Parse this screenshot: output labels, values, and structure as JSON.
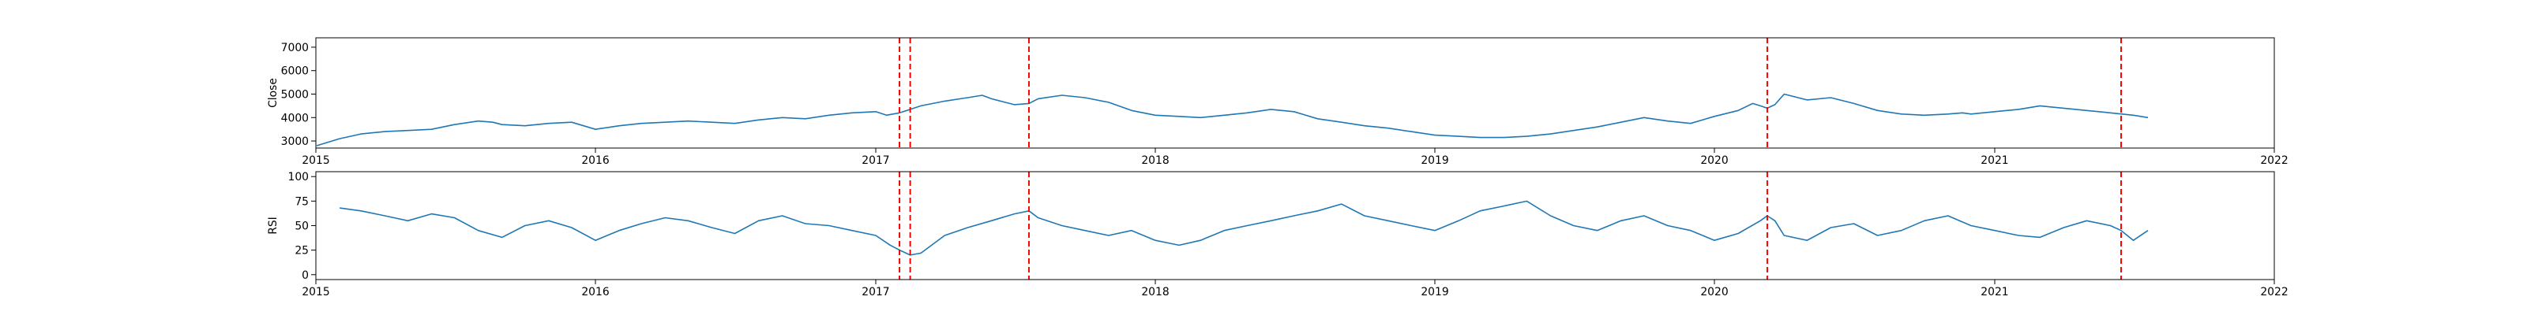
{
  "chart_data": [
    {
      "type": "line",
      "ylabel": "Close",
      "xlim": [
        "2015-01-01",
        "2022-01-01"
      ],
      "ylim": [
        2700,
        7400
      ],
      "xticks": [
        "2015",
        "2016",
        "2017",
        "2018",
        "2019",
        "2020",
        "2021",
        "2022"
      ],
      "yticks": [
        3000,
        4000,
        5000,
        6000,
        7000
      ],
      "grid": false,
      "line_color": "#1f77b4",
      "series": [
        {
          "x": [
            "2015-01-02",
            "2015-02-01",
            "2015-03-01",
            "2015-04-01",
            "2015-05-01",
            "2015-06-01",
            "2015-07-01",
            "2015-08-01",
            "2015-08-20",
            "2015-09-01",
            "2015-10-01",
            "2015-11-01",
            "2015-12-01",
            "2016-01-01",
            "2016-02-01",
            "2016-03-01",
            "2016-04-01",
            "2016-05-01",
            "2016-06-01",
            "2016-07-01",
            "2016-08-01",
            "2016-09-01",
            "2016-10-01",
            "2016-11-01",
            "2016-12-01",
            "2017-01-01",
            "2017-01-15",
            "2017-02-01",
            "2017-02-15",
            "2017-03-01",
            "2017-04-01",
            "2017-05-01",
            "2017-05-20",
            "2017-06-01",
            "2017-07-01",
            "2017-07-20",
            "2017-08-01",
            "2017-09-01",
            "2017-10-01",
            "2017-11-01",
            "2017-12-01",
            "2018-01-01",
            "2018-02-01",
            "2018-03-01",
            "2018-04-01",
            "2018-05-01",
            "2018-06-01",
            "2018-07-01",
            "2018-08-01",
            "2018-09-01",
            "2018-10-01",
            "2018-11-01",
            "2018-12-01",
            "2019-01-01",
            "2019-02-01",
            "2019-03-01",
            "2019-04-01",
            "2019-05-01",
            "2019-06-01",
            "2019-07-01",
            "2019-08-01",
            "2019-09-01",
            "2019-10-01",
            "2019-11-01",
            "2019-12-01",
            "2020-01-01",
            "2020-02-01",
            "2020-02-20",
            "2020-03-01",
            "2020-03-10",
            "2020-03-20",
            "2020-04-01",
            "2020-05-01",
            "2020-06-01",
            "2020-07-01",
            "2020-08-01",
            "2020-09-01",
            "2020-10-01",
            "2020-11-01",
            "2020-11-20",
            "2020-12-01",
            "2021-01-01",
            "2021-02-01",
            "2021-03-01",
            "2021-04-01",
            "2021-05-01",
            "2021-06-01",
            "2021-07-01",
            "2021-07-20"
          ],
          "y": [
            2800,
            3100,
            3300,
            3400,
            3450,
            3500,
            3700,
            3850,
            3800,
            3700,
            3650,
            3750,
            3800,
            3500,
            3650,
            3750,
            3800,
            3850,
            3800,
            3750,
            3900,
            4000,
            3950,
            4100,
            4200,
            4250,
            4100,
            4200,
            4350,
            4500,
            4700,
            4850,
            4950,
            4800,
            4550,
            4600,
            4800,
            4950,
            4850,
            4650,
            4300,
            4100,
            4050,
            4000,
            4100,
            4200,
            4350,
            4250,
            3950,
            3800,
            3650,
            3550,
            3400,
            3250,
            3200,
            3150,
            3150,
            3200,
            3300,
            3450,
            3600,
            3800,
            4000,
            3850,
            3750,
            4050,
            4300,
            4600,
            4500,
            4400,
            4550,
            5000,
            4750,
            4850,
            4600,
            4300,
            4150,
            4100,
            4150,
            4200,
            4150,
            4250,
            4350,
            4500,
            4400,
            4300,
            4200,
            4100,
            4000
          ]
        }
      ]
    },
    {
      "type": "line",
      "ylabel": "RSI",
      "xlim": [
        "2015-01-01",
        "2022-01-01"
      ],
      "ylim": [
        -5,
        105
      ],
      "xticks": [
        "2015",
        "2016",
        "2017",
        "2018",
        "2019",
        "2020",
        "2021",
        "2022"
      ],
      "yticks": [
        0,
        25,
        50,
        75,
        100
      ],
      "grid": false,
      "line_color": "#1f77b4",
      "series": [
        {
          "x": [
            "2015-02-01",
            "2015-03-01",
            "2015-04-01",
            "2015-05-01",
            "2015-06-01",
            "2015-07-01",
            "2015-08-01",
            "2015-09-01",
            "2015-10-01",
            "2015-11-01",
            "2015-12-01",
            "2016-01-01",
            "2016-02-01",
            "2016-03-01",
            "2016-04-01",
            "2016-05-01",
            "2016-06-01",
            "2016-07-01",
            "2016-08-01",
            "2016-09-01",
            "2016-10-01",
            "2016-11-01",
            "2016-12-01",
            "2017-01-01",
            "2017-01-20",
            "2017-02-01",
            "2017-02-15",
            "2017-03-01",
            "2017-04-01",
            "2017-05-01",
            "2017-06-01",
            "2017-07-01",
            "2017-07-20",
            "2017-08-01",
            "2017-09-01",
            "2017-10-01",
            "2017-11-01",
            "2017-12-01",
            "2018-01-01",
            "2018-02-01",
            "2018-03-01",
            "2018-04-01",
            "2018-05-01",
            "2018-06-01",
            "2018-07-01",
            "2018-08-01",
            "2018-09-01",
            "2018-10-01",
            "2018-11-01",
            "2018-12-01",
            "2019-01-01",
            "2019-02-01",
            "2019-03-01",
            "2019-04-01",
            "2019-05-01",
            "2019-06-01",
            "2019-07-01",
            "2019-08-01",
            "2019-09-01",
            "2019-10-01",
            "2019-11-01",
            "2019-12-01",
            "2020-01-01",
            "2020-02-01",
            "2020-03-01",
            "2020-03-10",
            "2020-03-20",
            "2020-04-01",
            "2020-05-01",
            "2020-06-01",
            "2020-07-01",
            "2020-08-01",
            "2020-09-01",
            "2020-10-01",
            "2020-11-01",
            "2020-12-01",
            "2021-01-01",
            "2021-02-01",
            "2021-03-01",
            "2021-04-01",
            "2021-05-01",
            "2021-06-01",
            "2021-06-15",
            "2021-07-01",
            "2021-07-20"
          ],
          "y": [
            68,
            65,
            60,
            55,
            62,
            58,
            45,
            38,
            50,
            55,
            48,
            35,
            45,
            52,
            58,
            55,
            48,
            42,
            55,
            60,
            52,
            50,
            45,
            40,
            30,
            25,
            20,
            22,
            40,
            48,
            55,
            62,
            65,
            58,
            50,
            45,
            40,
            45,
            35,
            30,
            35,
            45,
            50,
            55,
            60,
            65,
            72,
            60,
            55,
            50,
            45,
            55,
            65,
            70,
            75,
            60,
            50,
            45,
            55,
            60,
            50,
            45,
            35,
            42,
            55,
            60,
            55,
            40,
            35,
            48,
            52,
            40,
            45,
            55,
            60,
            50,
            45,
            40,
            38,
            48,
            55,
            50,
            45,
            35,
            45
          ]
        }
      ]
    }
  ],
  "vlines": {
    "color": "#ff0000",
    "style": "dashed",
    "dates": [
      "2017-02-01",
      "2017-02-15",
      "2017-07-20",
      "2020-03-10",
      "2021-06-15"
    ]
  }
}
